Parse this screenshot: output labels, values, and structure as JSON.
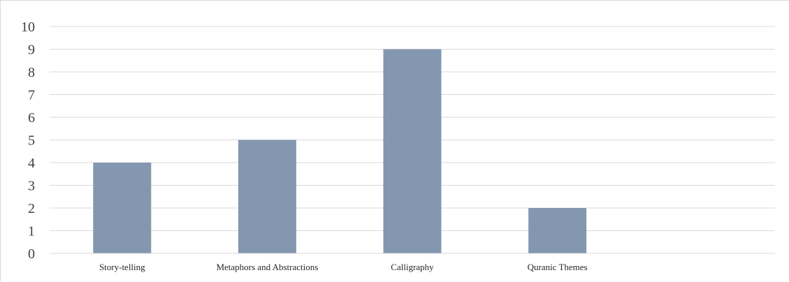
{
  "chart_data": {
    "type": "bar",
    "categories": [
      "Story-telling",
      "Metaphors and Abstractions",
      "Calligraphy",
      "Quranic Themes",
      ""
    ],
    "values": [
      4,
      5,
      9,
      2,
      null
    ],
    "title": "",
    "xlabel": "",
    "ylabel": "",
    "ylim": [
      0,
      10
    ],
    "yticks": [
      "0",
      "1",
      "2",
      "3",
      "4",
      "5",
      "6",
      "7",
      "8",
      "9",
      "10"
    ],
    "grid": true,
    "legend": "none",
    "bar_color": "#8497b0",
    "grid_color": "#d9d9d9"
  }
}
